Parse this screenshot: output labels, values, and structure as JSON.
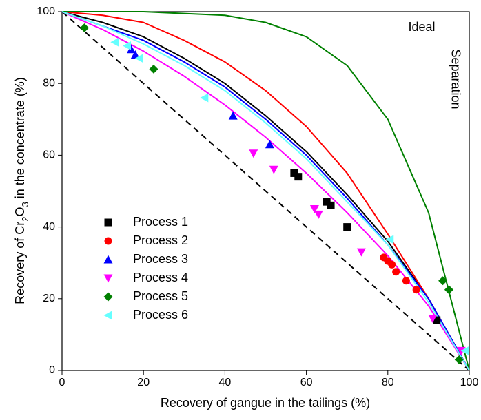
{
  "chart_data": {
    "type": "scatter",
    "xlabel": "Recovery of gangue in the tailings (%)",
    "ylabel": [
      "Recovery of Cr",
      "2",
      "O",
      "3",
      " in the concentrate (%)"
    ],
    "annotations": [
      "Ideal",
      "Separation"
    ],
    "xlim": [
      0,
      100
    ],
    "xticks": [
      0,
      20,
      40,
      60,
      80,
      100
    ],
    "ylim": [
      0,
      100
    ],
    "yticks": [
      0,
      20,
      40,
      60,
      80,
      100
    ],
    "fit_x": [
      0,
      10,
      20,
      30,
      40,
      50,
      60,
      70,
      80,
      90,
      100
    ],
    "reference": {
      "x": [
        0,
        100
      ],
      "values": [
        100,
        0
      ],
      "color": "#000000"
    },
    "series": [
      {
        "name": "Process 1",
        "color": "#000000",
        "marker": "square",
        "x": [
          57,
          58,
          65,
          66,
          70,
          92
        ],
        "values": [
          55,
          54,
          47,
          46,
          40,
          14
        ],
        "fit_values": [
          100,
          97,
          93,
          87,
          80,
          71,
          61,
          49,
          36,
          20,
          0
        ]
      },
      {
        "name": "Process 2",
        "color": "#ff0000",
        "marker": "circle",
        "x": [
          79,
          80,
          81,
          82,
          84.5,
          87
        ],
        "values": [
          31.5,
          30.5,
          29.5,
          27.5,
          25,
          22.5
        ],
        "fit_values": [
          100,
          99,
          97,
          92,
          86,
          78,
          68,
          55,
          38,
          20,
          0
        ]
      },
      {
        "name": "Process 3",
        "color": "#0000ff",
        "marker": "triangle-up",
        "x": [
          17,
          18,
          42,
          51
        ],
        "values": [
          89.5,
          88,
          71,
          63
        ],
        "fit_values": [
          100,
          96,
          92,
          86,
          79,
          70,
          60,
          48,
          35,
          20,
          0
        ]
      },
      {
        "name": "Process 4",
        "color": "#ff00ff",
        "marker": "triangle-down",
        "x": [
          47,
          52,
          62,
          63,
          73.5,
          91,
          98
        ],
        "values": [
          60.5,
          56,
          45,
          43.5,
          33,
          14.5,
          5.5
        ],
        "fit_values": [
          100,
          95,
          89,
          82,
          74,
          65,
          55,
          44,
          32,
          18,
          0
        ]
      },
      {
        "name": "Process 5",
        "color": "#008000",
        "marker": "diamond",
        "x": [
          5.5,
          22.5,
          93.5,
          95,
          97.5
        ],
        "values": [
          95.5,
          84,
          25,
          22.5,
          3
        ],
        "fit_values": [
          100,
          100,
          100,
          99.5,
          99,
          97,
          93,
          85,
          70,
          44,
          0
        ]
      },
      {
        "name": "Process 6",
        "color": "#66ffff",
        "marker": "triangle-left",
        "x": [
          13,
          16,
          19,
          35,
          80.5,
          99
        ],
        "values": [
          91.5,
          90.5,
          87,
          76,
          36.5,
          5.5
        ],
        "fit_values": [
          100,
          96,
          91,
          85,
          78,
          69,
          59,
          47,
          35,
          19,
          0
        ]
      }
    ]
  }
}
